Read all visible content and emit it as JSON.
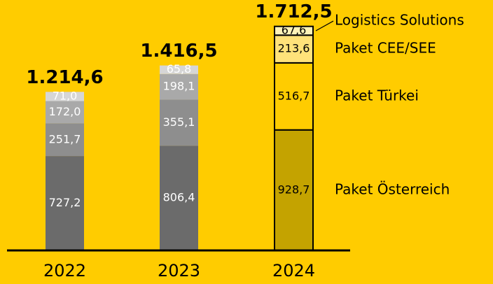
{
  "chart_data": {
    "type": "stacked_bar",
    "categories": [
      "2022",
      "2023",
      "2024"
    ],
    "series": [
      {
        "name": "Paket Österreich",
        "colors": [
          "#6b6b6b",
          "#6b6b6b",
          "#c4a300"
        ],
        "values": [
          727.2,
          806.4,
          928.7
        ],
        "value_labels": [
          "727,2",
          "806,4",
          "928,7"
        ]
      },
      {
        "name": "Paket Türkei",
        "colors": [
          "#8e8e8e",
          "#8e8e8e",
          "#ffcc00"
        ],
        "values": [
          251.7,
          355.1,
          516.7
        ],
        "value_labels": [
          "251,7",
          "355,1",
          "516,7"
        ]
      },
      {
        "name": "Paket CEE/SEE",
        "colors": [
          "#a9a9a9",
          "#a9a9a9",
          "#ffe27a"
        ],
        "values": [
          172.0,
          198.1,
          213.6
        ],
        "value_labels": [
          "172,0",
          "198,1",
          "213,6"
        ]
      },
      {
        "name": "Logistics Solutions",
        "colors": [
          "#d6d6d6",
          "#d6d6d6",
          "#fff2b8"
        ],
        "values": [
          71.0,
          65.8,
          67.6
        ],
        "value_labels": [
          "71,0",
          "65,8",
          "67,6"
        ]
      }
    ],
    "totals": {
      "values": [
        1214.6,
        1416.5,
        1712.5
      ],
      "value_labels": [
        "1.214,6",
        "1.416,5",
        "1.712,5"
      ]
    }
  }
}
